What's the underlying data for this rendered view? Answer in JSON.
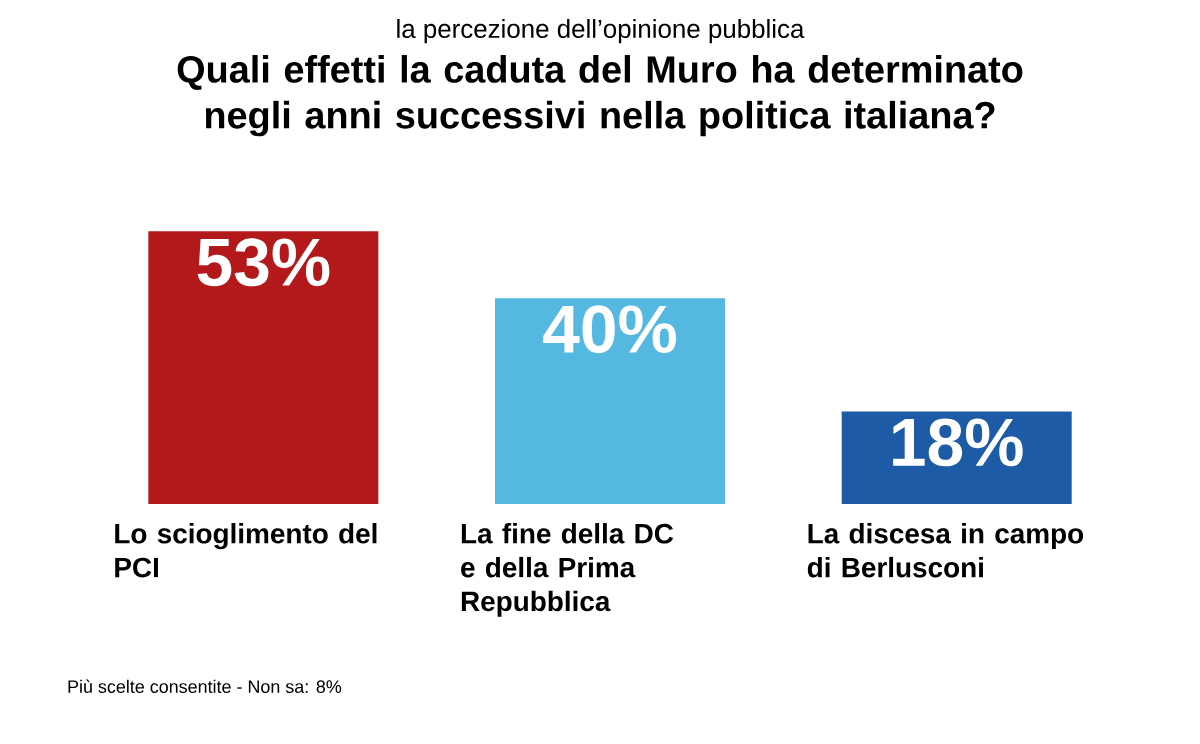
{
  "chart_data": {
    "type": "bar",
    "subtitle": "la percezione dell’opinione pubblica",
    "title": "Quali effetti la caduta del Muro ha determinato negli anni successivi nella politica italiana?",
    "categories": [
      "Lo scioglimento del PCI",
      "La fine della DC e della Prima Repubblica",
      "La discesa in campo di Berlusconi"
    ],
    "values": [
      53,
      40,
      18
    ],
    "value_labels": [
      "53%",
      "40%",
      "18%"
    ],
    "colors": [
      "#b3181b",
      "#55b8e0",
      "#1d5ba6"
    ],
    "annotations": [
      "Più scelte consentite - Non sa: 8%"
    ]
  }
}
